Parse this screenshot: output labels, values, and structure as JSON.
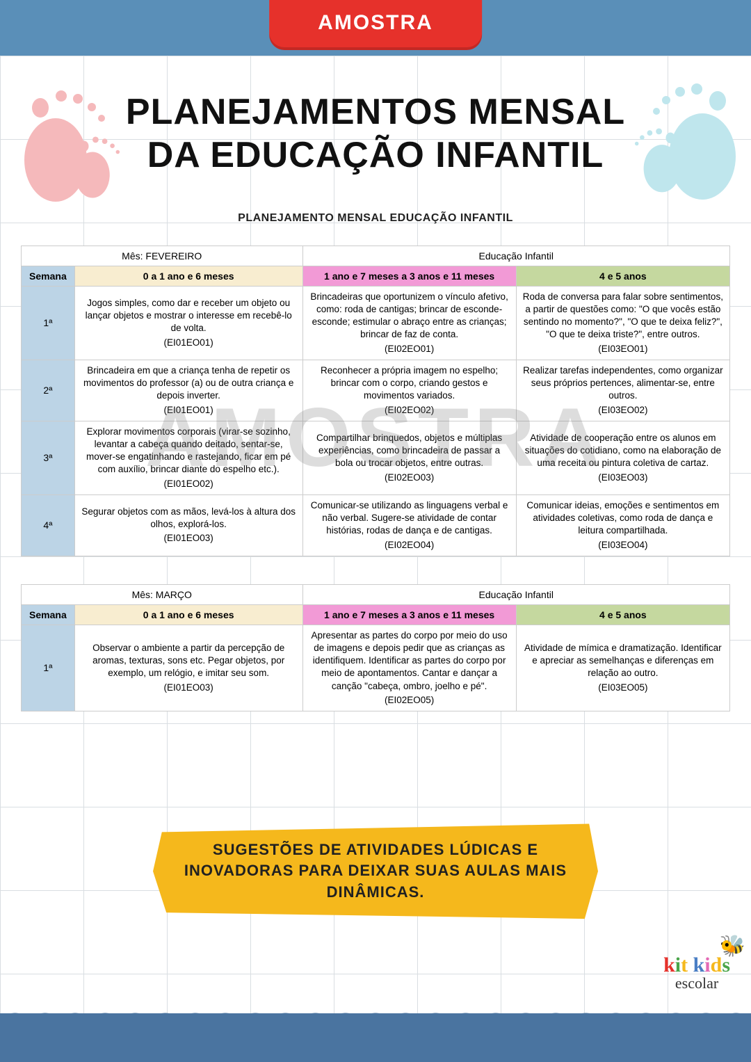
{
  "colors": {
    "topBar": "#5a8fb8",
    "redTab": "#e6312b",
    "grid": "#d9dee2",
    "semanaBg": "#bcd4e6",
    "colA": "#f8edd0",
    "colB": "#f29ad6",
    "colC": "#c5d89f",
    "banner": "#f5b81c",
    "wave": "#4a74a0",
    "footLeft": "#f5b9bb",
    "footRight": "#bfe6ed",
    "watermark": "rgba(120,120,120,0.25)"
  },
  "header": {
    "tab": "AMOSTRA",
    "title_line1": "PLANEJAMENTOS MENSAL",
    "title_line2": "DA EDUCAÇÃO INFANTIL",
    "subtitle": "PLANEJAMENTO MENSAL EDUCAÇÃO INFANTIL"
  },
  "watermark": "AMOSTRA",
  "tableHeaders": {
    "semana": "Semana",
    "colA": "0 a 1 ano e 6 meses",
    "colB": "1 ano e 7 meses a 3 anos e 11 meses",
    "colC": "4 e 5 anos",
    "eduLabel": "Educação Infantil"
  },
  "tables": [
    {
      "monthLabel": "Mês: FEVEREIRO",
      "rows": [
        {
          "week": "1ª",
          "a": "Jogos simples, como dar e receber um objeto ou lançar objetos e mostrar o interesse em recebê-lo de volta.\n(EI01EO01)",
          "b": "Brincadeiras que oportunizem o vínculo afetivo, como: roda de cantigas; brincar de esconde-esconde; estimular o abraço entre as crianças; brincar de faz de conta.\n(EI02EO01)",
          "c": "Roda de conversa para falar sobre sentimentos, a partir de questões como: \"O que vocês estão sentindo no momento?\", \"O que te deixa feliz?\", \"O que te deixa triste?\", entre outros.\n(EI03EO01)"
        },
        {
          "week": "2ª",
          "a": "Brincadeira em que a criança tenha de repetir os movimentos do professor (a) ou de outra criança e depois inverter.\n(EI01EO01)",
          "b": "Reconhecer a própria imagem no espelho; brincar com o corpo, criando gestos e movimentos variados.\n(EI02EO02)",
          "c": "Realizar tarefas independentes, como organizar seus próprios pertences, alimentar-se, entre outros.\n(EI03EO02)"
        },
        {
          "week": "3ª",
          "a": "Explorar movimentos corporais (virar-se sozinho, levantar a cabeça quando deitado, sentar-se, mover-se engatinhando e rastejando, ficar em pé com auxílio, brincar diante do espelho etc.).\n(EI01EO02)",
          "b": "Compartilhar brinquedos, objetos e múltiplas experiências, como brincadeira de passar a bola ou trocar objetos, entre outras.\n(EI02EO03)",
          "c": "Atividade de cooperação entre os alunos em situações do cotidiano, como na elaboração de uma receita ou pintura coletiva de cartaz.\n(EI03EO03)"
        },
        {
          "week": "4ª",
          "a": "Segurar objetos com as mãos, levá-los à altura dos olhos, explorá-los.\n(EI01EO03)",
          "b": "Comunicar-se utilizando as linguagens verbal e não verbal. Sugere-se atividade de contar histórias, rodas de dança e de cantigas.\n(EI02EO04)",
          "c": "Comunicar ideias, emoções e sentimentos em atividades coletivas, como roda de dança e leitura compartilhada.\n(EI03EO04)"
        }
      ]
    },
    {
      "monthLabel": "Mês: MARÇO",
      "rows": [
        {
          "week": "1ª",
          "a": "Observar o ambiente a partir da percepção de aromas, texturas, sons etc. Pegar objetos, por exemplo, um relógio, e imitar seu som.\n(EI01EO03)",
          "b": "Apresentar as partes do corpo por meio do uso de imagens e depois pedir que as crianças as identifiquem. Identificar as partes do corpo por meio de apontamentos. Cantar e dançar a canção \"cabeça, ombro, joelho e pé\".\n(EI02EO05)",
          "c": "Atividade de mímica e dramatização. Identificar e apreciar as semelhanças e diferenças em relação ao outro.\n(EI03EO05)"
        }
      ]
    }
  ],
  "banner": "SUGESTÕES DE ATIVIDADES LÚDICAS E INOVADORAS PARA DEIXAR SUAS AULAS MAIS DINÂMICAS.",
  "logo": {
    "text": "kit kids",
    "sub": "escolar"
  }
}
